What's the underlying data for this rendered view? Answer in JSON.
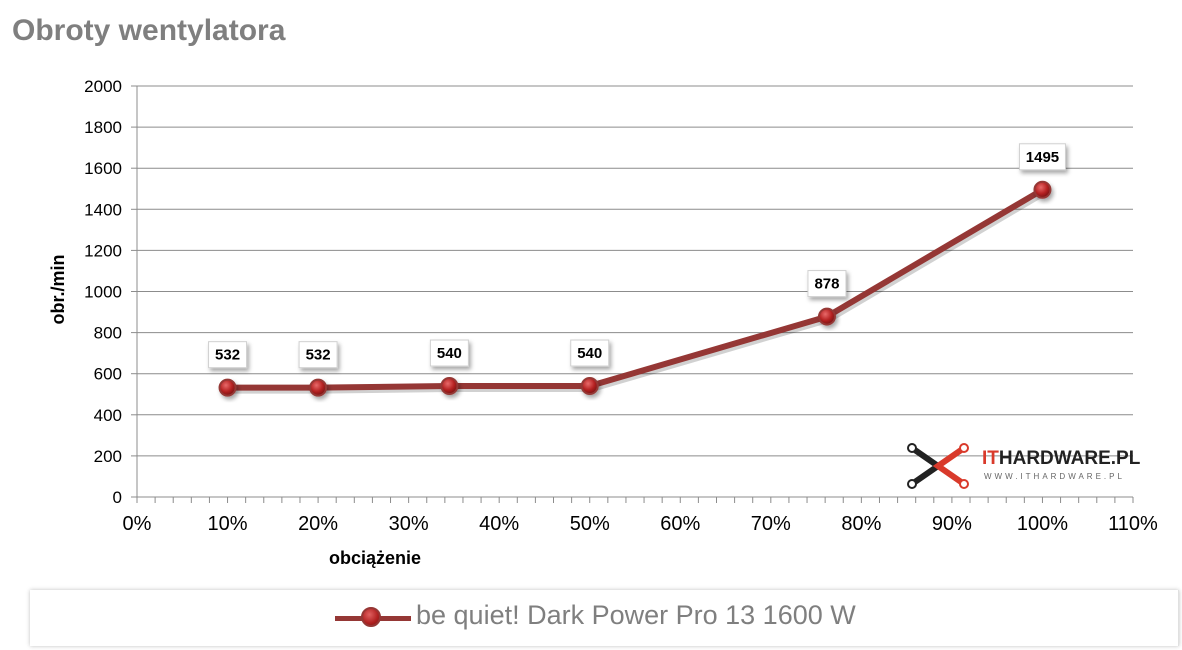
{
  "chart_data": {
    "type": "line",
    "title": "Obroty wentylatora",
    "xlabel": "obciążenie",
    "ylabel": "obr./min",
    "xlim": [
      0,
      110
    ],
    "ylim": [
      0,
      2000
    ],
    "x_tick_labels": [
      "0%",
      "10%",
      "20%",
      "30%",
      "40%",
      "50%",
      "60%",
      "70%",
      "80%",
      "90%",
      "100%",
      "110%"
    ],
    "y_tick_labels": [
      "0",
      "200",
      "400",
      "600",
      "800",
      "1000",
      "1200",
      "1400",
      "1600",
      "1800",
      "2000"
    ],
    "grid": true,
    "legend_position": "bottom",
    "series": [
      {
        "name": "be quiet! Dark Power Pro 13 1600 W",
        "color": "#953735",
        "x": [
          10,
          20,
          34.5,
          50,
          76.2,
          100
        ],
        "values": [
          532,
          532,
          540,
          540,
          878,
          1495
        ],
        "labels": [
          "532",
          "532",
          "540",
          "540",
          "878",
          "1495"
        ]
      }
    ]
  },
  "watermark": {
    "name_part1": "IT",
    "name_part2": "HARDWARE.PL",
    "url": "WWW.ITHARDWARE.PL"
  }
}
